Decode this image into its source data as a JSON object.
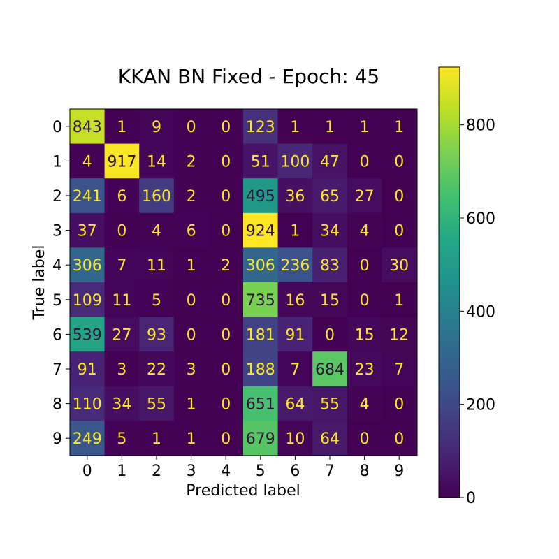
{
  "chart_data": {
    "type": "heatmap",
    "title": "KKAN BN Fixed - Epoch: 45",
    "xlabel": "Predicted label",
    "ylabel": "True label",
    "x_ticks": [
      "0",
      "1",
      "2",
      "3",
      "4",
      "5",
      "6",
      "7",
      "8",
      "9"
    ],
    "y_ticks": [
      "0",
      "1",
      "2",
      "3",
      "4",
      "5",
      "6",
      "7",
      "8",
      "9"
    ],
    "values": [
      [
        843,
        1,
        9,
        0,
        0,
        123,
        1,
        1,
        1,
        1
      ],
      [
        4,
        917,
        14,
        2,
        0,
        51,
        100,
        47,
        0,
        0
      ],
      [
        241,
        6,
        160,
        2,
        0,
        495,
        36,
        65,
        27,
        0
      ],
      [
        37,
        0,
        4,
        6,
        0,
        924,
        1,
        34,
        4,
        0
      ],
      [
        306,
        7,
        11,
        1,
        2,
        306,
        236,
        83,
        0,
        30
      ],
      [
        109,
        11,
        5,
        0,
        0,
        735,
        16,
        15,
        0,
        1
      ],
      [
        539,
        27,
        93,
        0,
        0,
        181,
        91,
        0,
        15,
        12
      ],
      [
        91,
        3,
        22,
        3,
        0,
        188,
        7,
        684,
        23,
        7
      ],
      [
        110,
        34,
        55,
        1,
        0,
        651,
        64,
        55,
        4,
        0
      ],
      [
        249,
        5,
        1,
        1,
        0,
        679,
        10,
        64,
        0,
        0
      ]
    ],
    "colormap": "viridis",
    "vmin": 0,
    "vmax": 924,
    "colorbar_ticks": [
      0,
      200,
      400,
      600,
      800
    ],
    "text_color_light": "#fde725",
    "text_color_dark": "#30123b"
  }
}
